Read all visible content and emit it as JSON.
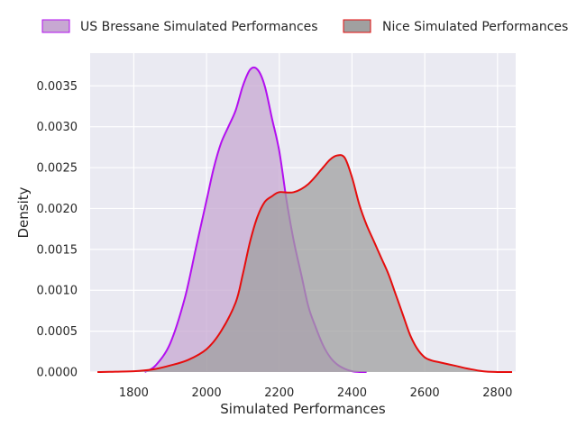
{
  "chart_data": {
    "type": "area",
    "xlabel": "Simulated Performances",
    "ylabel": "Density",
    "xlim": [
      1680,
      2850
    ],
    "ylim": [
      0,
      0.0039
    ],
    "x_ticks": [
      1800,
      2000,
      2200,
      2400,
      2600,
      2800
    ],
    "x_tick_labels": [
      "1800",
      "2000",
      "2200",
      "2400",
      "2600",
      "2800"
    ],
    "y_ticks": [
      0,
      0.0005,
      0.001,
      0.0015,
      0.002,
      0.0025,
      0.003,
      0.0035
    ],
    "y_tick_labels": [
      "0.0000",
      "0.0005",
      "0.0010",
      "0.0015",
      "0.0020",
      "0.0025",
      "0.0030",
      "0.0035"
    ],
    "grid": true,
    "legend_position": "top",
    "series": [
      {
        "name": "US Bressane Simulated Performances",
        "line_color": "#b30ff0",
        "fill_color": "#c7a8d2",
        "x": [
          1830,
          1860,
          1900,
          1940,
          1970,
          2000,
          2020,
          2040,
          2060,
          2080,
          2100,
          2120,
          2140,
          2160,
          2180,
          2200,
          2220,
          2240,
          2260,
          2280,
          2300,
          2320,
          2340,
          2360,
          2380,
          2400,
          2420,
          2440
        ],
        "values": [
          0.0,
          8e-05,
          0.00035,
          0.0009,
          0.0015,
          0.0021,
          0.0025,
          0.0028,
          0.003,
          0.0032,
          0.0035,
          0.0037,
          0.0037,
          0.0035,
          0.0031,
          0.0027,
          0.0021,
          0.0016,
          0.0012,
          0.0008,
          0.00055,
          0.00033,
          0.00018,
          9e-05,
          4e-05,
          1e-05,
          0.0,
          0.0
        ]
      },
      {
        "name": "Nice Simulated Performances",
        "line_color": "#e60d0d",
        "fill_color": "#a0a0a0",
        "x": [
          1700,
          1800,
          1850,
          1900,
          1950,
          2000,
          2040,
          2080,
          2100,
          2120,
          2140,
          2160,
          2180,
          2200,
          2240,
          2280,
          2320,
          2340,
          2360,
          2380,
          2400,
          2420,
          2440,
          2460,
          2480,
          2500,
          2520,
          2540,
          2560,
          2580,
          2600,
          2620,
          2640,
          2680,
          2720,
          2760,
          2800,
          2840
        ],
        "values": [
          0.0,
          1e-05,
          3e-05,
          8e-05,
          0.00015,
          0.00028,
          0.0005,
          0.00085,
          0.0012,
          0.0016,
          0.0019,
          0.00208,
          0.00215,
          0.0022,
          0.0022,
          0.0023,
          0.0025,
          0.0026,
          0.00265,
          0.00262,
          0.00238,
          0.00205,
          0.0018,
          0.0016,
          0.0014,
          0.0012,
          0.00095,
          0.0007,
          0.00045,
          0.00028,
          0.00018,
          0.00014,
          0.00012,
          8e-05,
          4e-05,
          1e-05,
          0.0,
          0.0
        ]
      }
    ]
  }
}
